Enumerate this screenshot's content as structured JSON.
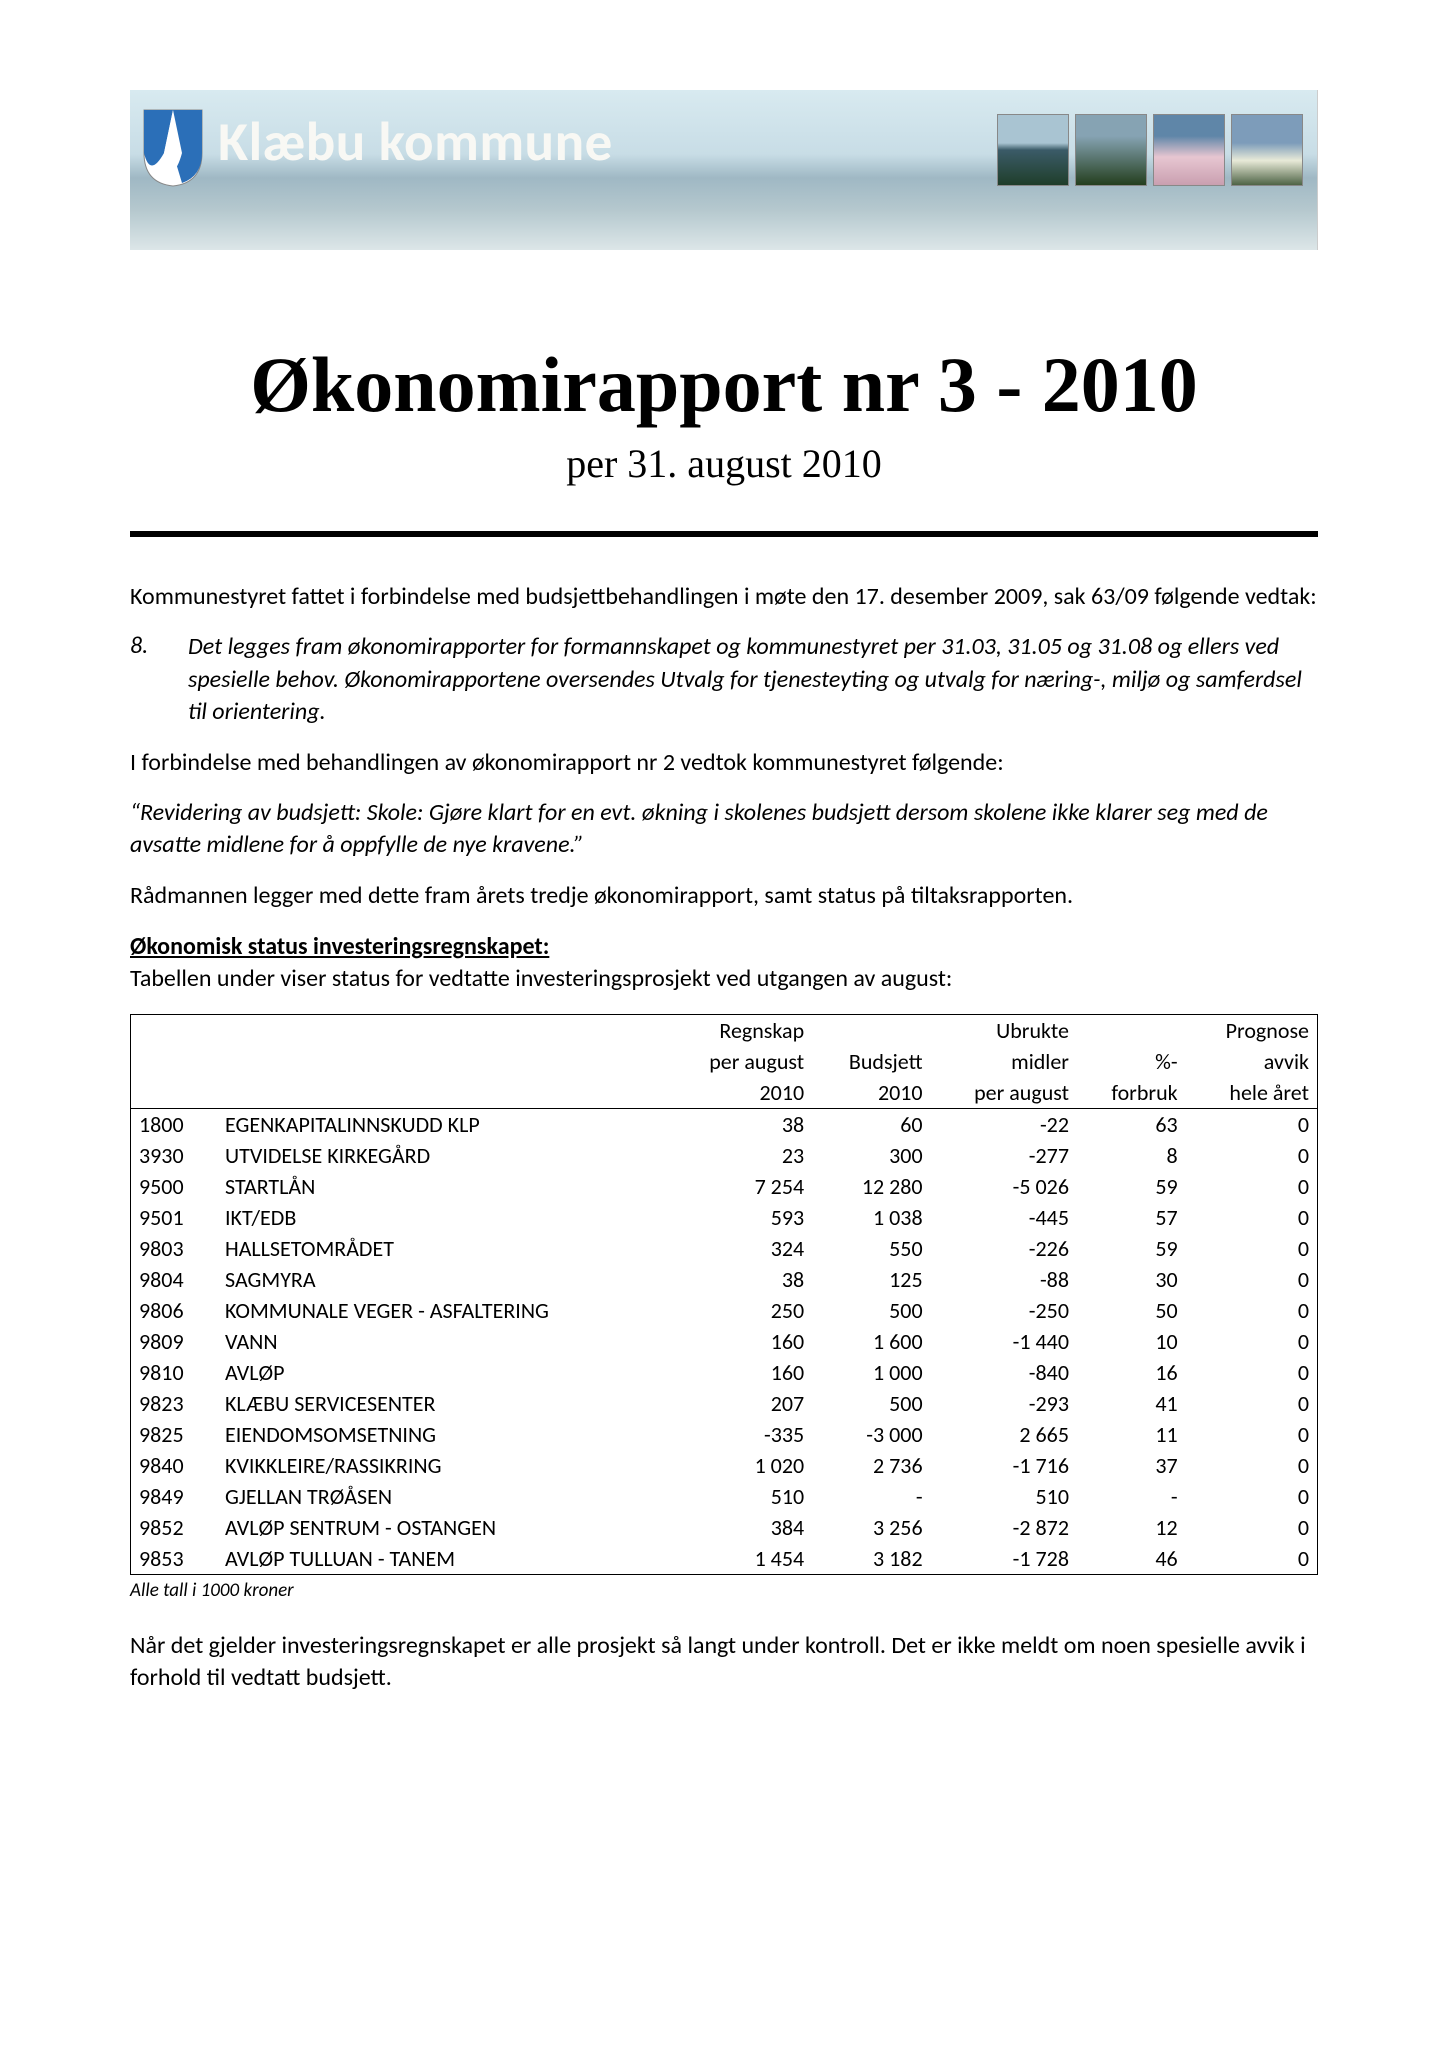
{
  "banner": {
    "title": "Klæbu kommune"
  },
  "title": "Økonomirapport nr 3 - 2010",
  "subtitle": "per 31. august 2010",
  "intro1": "Kommunestyret fattet i forbindelse med budsjettbehandlingen i møte den 17. desember 2009, sak 63/09 følgende vedtak:",
  "item_num": "8.",
  "item_txt": "Det legges fram økonomirapporter for formannskapet og kommunestyret per 31.03, 31.05 og 31.08 og ellers ved spesielle behov. Økonomirapportene oversendes Utvalg for tjenesteyting og utvalg for næring-, miljø og samferdsel til orientering.",
  "para2": "I forbindelse med behandlingen av økonomirapport nr 2 vedtok kommunestyret følgende:",
  "quote": "“Revidering av budsjett: Skole: Gjøre klart for en evt. økning i skolenes budsjett dersom skolene ikke klarer seg med de avsatte midlene for å oppfylle de nye kravene.”",
  "para3": "Rådmannen legger med dette fram årets tredje økonomirapport, samt status på tiltaksrapporten.",
  "section_heading": "Økonomisk status investeringsregnskapet:",
  "section_sub": "Tabellen under viser status for vedtatte investeringsprosjekt ved utgangen av august:",
  "table": {
    "h1": {
      "c3": "Regnskap",
      "c5": "Ubrukte",
      "c7": "Prognose"
    },
    "h2": {
      "c3": "per august",
      "c4": "Budsjett",
      "c5": "midler",
      "c6": "%-",
      "c7": "avvik"
    },
    "h3": {
      "c3": "2010",
      "c4": "2010",
      "c5": "per august",
      "c6": "forbruk",
      "c7": "hele året"
    },
    "rows": [
      {
        "code": "1800",
        "name": "EGENKAPITALINNSKUDD KLP",
        "c3": "38",
        "c4": "60",
        "c5": "-22",
        "c6": "63",
        "c7": "0"
      },
      {
        "code": "3930",
        "name": "UTVIDELSE KIRKEGÅRD",
        "c3": "23",
        "c4": "300",
        "c5": "-277",
        "c6": "8",
        "c7": "0"
      },
      {
        "code": "9500",
        "name": "STARTLÅN",
        "c3": "7 254",
        "c4": "12 280",
        "c5": "-5 026",
        "c6": "59",
        "c7": "0"
      },
      {
        "code": "9501",
        "name": "IKT/EDB",
        "c3": "593",
        "c4": "1 038",
        "c5": "-445",
        "c6": "57",
        "c7": "0"
      },
      {
        "code": "9803",
        "name": "HALLSETOMRÅDET",
        "c3": "324",
        "c4": "550",
        "c5": "-226",
        "c6": "59",
        "c7": "0"
      },
      {
        "code": "9804",
        "name": "SAGMYRA",
        "c3": "38",
        "c4": "125",
        "c5": "-88",
        "c6": "30",
        "c7": "0"
      },
      {
        "code": "9806",
        "name": "KOMMUNALE VEGER - ASFALTERING",
        "c3": "250",
        "c4": "500",
        "c5": "-250",
        "c6": "50",
        "c7": "0"
      },
      {
        "code": "9809",
        "name": "VANN",
        "c3": "160",
        "c4": "1 600",
        "c5": "-1 440",
        "c6": "10",
        "c7": "0"
      },
      {
        "code": "9810",
        "name": "AVLØP",
        "c3": "160",
        "c4": "1 000",
        "c5": "-840",
        "c6": "16",
        "c7": "0"
      },
      {
        "code": "9823",
        "name": "KLÆBU SERVICESENTER",
        "c3": "207",
        "c4": "500",
        "c5": "-293",
        "c6": "41",
        "c7": "0"
      },
      {
        "code": "9825",
        "name": "EIENDOMSOMSETNING",
        "c3": "-335",
        "c4": "-3 000",
        "c5": "2 665",
        "c6": "11",
        "c7": "0"
      },
      {
        "code": "9840",
        "name": "KVIKKLEIRE/RASSIKRING",
        "c3": "1 020",
        "c4": "2 736",
        "c5": "-1 716",
        "c6": "37",
        "c7": "0"
      },
      {
        "code": "9849",
        "name": "GJELLAN TRØÅSEN",
        "c3": "510",
        "c4": "-",
        "c5": "510",
        "c6": "-",
        "c7": "0"
      },
      {
        "code": "9852",
        "name": "AVLØP SENTRUM - OSTANGEN",
        "c3": "384",
        "c4": "3 256",
        "c5": "-2 872",
        "c6": "12",
        "c7": "0"
      },
      {
        "code": "9853",
        "name": "AVLØP TULLUAN - TANEM",
        "c3": "1 454",
        "c4": "3 182",
        "c5": "-1 728",
        "c6": "46",
        "c7": "0"
      }
    ]
  },
  "footnote": "Alle tall i 1000 kroner",
  "closing": "Når det gjelder investeringsregnskapet er alle prosjekt så langt under kontroll. Det er ikke meldt om noen spesielle avvik i forhold til vedtatt budsjett.",
  "colors": {
    "thumb1": "linear-gradient(to bottom, #a9c4d2 40%, #3b5b68 50%, #1f3e2a 100%)",
    "thumb2": "linear-gradient(to bottom, #86a3b3 30%, #243f1e 100%)",
    "thumb3": "linear-gradient(to bottom, #5f86a8 30%, #e7c6d1 60%, #c99fb0 100%)",
    "thumb4": "linear-gradient(to bottom, #7d9cba 40%, #e8ead8 65%, #4e6446 100%)"
  }
}
